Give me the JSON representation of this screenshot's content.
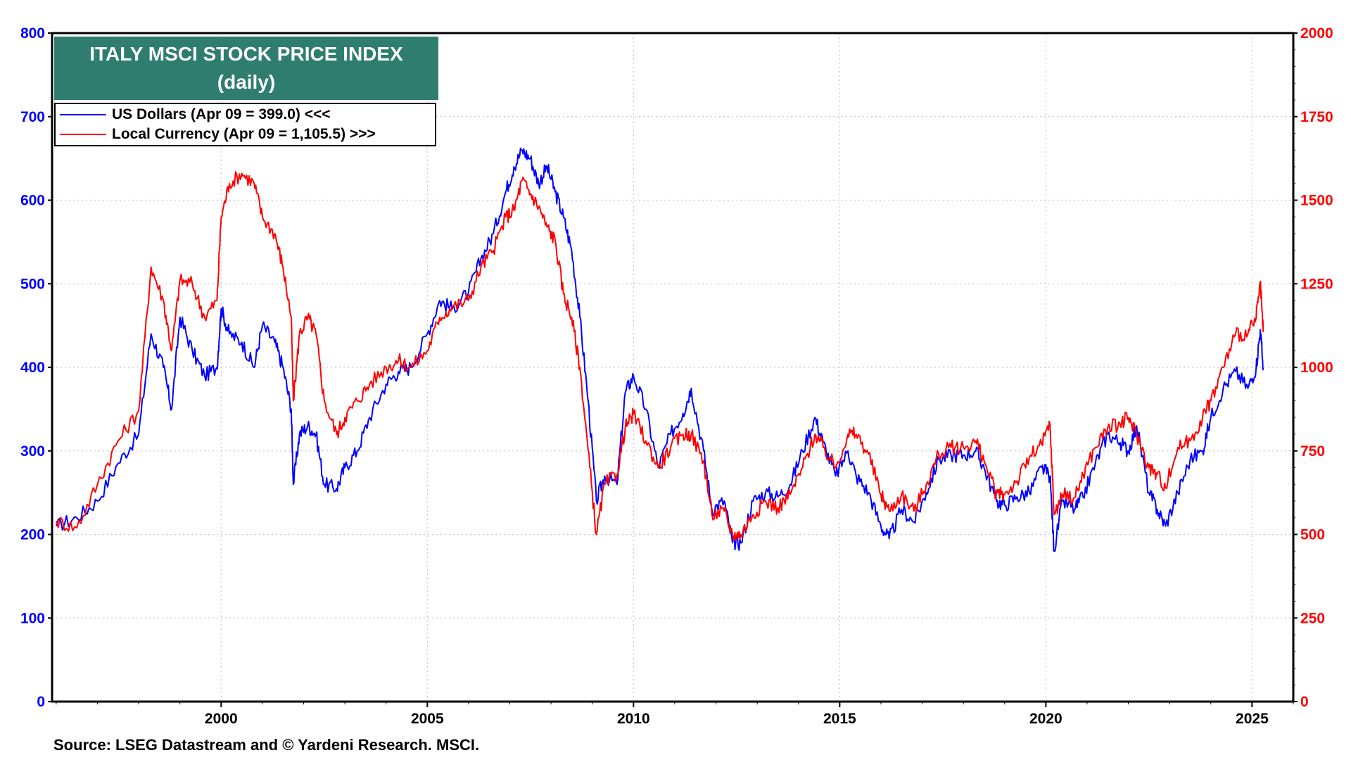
{
  "chart_data": {
    "type": "line",
    "title": "ITALY MSCI STOCK PRICE INDEX",
    "subtitle": "(daily)",
    "source": "Source: LSEG Datastream and © Yardeni Research. MSCI.",
    "x_ticks": [
      "2000",
      "2005",
      "2010",
      "2015",
      "2020",
      "2025"
    ],
    "xlim": [
      1995.9,
      2026.0
    ],
    "y_left": {
      "ylim": [
        0,
        800
      ],
      "ticks": [
        "0",
        "100",
        "200",
        "300",
        "400",
        "500",
        "600",
        "700",
        "800"
      ],
      "color": "#0000ff"
    },
    "y_right": {
      "ylim": [
        0,
        2000
      ],
      "ticks": [
        "0",
        "250",
        "500",
        "750",
        "1000",
        "1250",
        "1500",
        "1750",
        "2000"
      ],
      "color": "#ff0000"
    },
    "legend_placement": "top-left",
    "grid": true,
    "series": [
      {
        "name": "US Dollars (Apr 09 = 399.0) <<<",
        "axis": "left",
        "color": "#0000ff",
        "x": [
          1996.0,
          1996.5,
          1997.0,
          1997.5,
          1998.0,
          1998.3,
          1998.6,
          1998.8,
          1999.0,
          1999.3,
          1999.6,
          1999.9,
          2000.0,
          2000.2,
          2000.5,
          2000.8,
          2001.0,
          2001.3,
          2001.5,
          2001.7,
          2001.75,
          2001.9,
          2002.1,
          2002.3,
          2002.5,
          2002.8,
          2003.0,
          2003.3,
          2003.6,
          2004.0,
          2004.3,
          2004.6,
          2005.0,
          2005.3,
          2005.6,
          2006.0,
          2006.3,
          2006.6,
          2006.9,
          2007.1,
          2007.3,
          2007.5,
          2007.7,
          2007.9,
          2008.1,
          2008.3,
          2008.5,
          2008.7,
          2008.9,
          2009.1,
          2009.3,
          2009.6,
          2009.8,
          2010.0,
          2010.3,
          2010.6,
          2010.9,
          2011.2,
          2011.4,
          2011.7,
          2011.9,
          2012.2,
          2012.4,
          2012.6,
          2012.9,
          2013.2,
          2013.5,
          2013.8,
          2014.1,
          2014.4,
          2014.6,
          2014.9,
          2015.2,
          2015.4,
          2015.7,
          2016.0,
          2016.2,
          2016.5,
          2016.8,
          2017.1,
          2017.4,
          2017.7,
          2018.0,
          2018.3,
          2018.5,
          2018.8,
          2019.0,
          2019.3,
          2019.6,
          2019.9,
          2020.1,
          2020.2,
          2020.4,
          2020.7,
          2020.9,
          2021.2,
          2021.5,
          2021.8,
          2022.0,
          2022.2,
          2022.5,
          2022.7,
          2022.9,
          2023.2,
          2023.5,
          2023.8,
          2024.0,
          2024.3,
          2024.6,
          2024.9,
          2025.1,
          2025.2,
          2025.27
        ],
        "values": [
          210,
          220,
          240,
          285,
          320,
          440,
          400,
          350,
          460,
          420,
          390,
          400,
          470,
          440,
          430,
          400,
          450,
          430,
          400,
          350,
          260,
          320,
          330,
          320,
          260,
          255,
          280,
          300,
          340,
          380,
          395,
          400,
          440,
          480,
          470,
          490,
          530,
          560,
          610,
          640,
          660,
          650,
          620,
          640,
          610,
          580,
          540,
          460,
          360,
          240,
          270,
          260,
          370,
          390,
          350,
          280,
          320,
          345,
          375,
          300,
          230,
          240,
          190,
          190,
          240,
          250,
          245,
          260,
          300,
          340,
          310,
          270,
          300,
          270,
          250,
          210,
          195,
          230,
          215,
          250,
          290,
          295,
          295,
          300,
          280,
          240,
          235,
          245,
          250,
          280,
          270,
          180,
          240,
          230,
          245,
          285,
          320,
          310,
          300,
          330,
          250,
          230,
          210,
          250,
          290,
          300,
          340,
          375,
          395,
          375,
          400,
          445,
          399
        ]
      },
      {
        "name": "Local Currency (Apr 09 = 1,105.5) >>>",
        "axis": "right",
        "color": "#ff0000",
        "x": [
          1996.0,
          1996.5,
          1997.0,
          1997.5,
          1998.0,
          1998.3,
          1998.6,
          1998.8,
          1999.0,
          1999.3,
          1999.6,
          1999.9,
          2000.0,
          2000.2,
          2000.5,
          2000.8,
          2001.0,
          2001.3,
          2001.5,
          2001.7,
          2001.75,
          2001.9,
          2002.1,
          2002.3,
          2002.5,
          2002.8,
          2003.0,
          2003.3,
          2003.6,
          2004.0,
          2004.3,
          2004.6,
          2005.0,
          2005.3,
          2005.6,
          2006.0,
          2006.3,
          2006.6,
          2006.9,
          2007.1,
          2007.3,
          2007.5,
          2007.7,
          2007.9,
          2008.1,
          2008.3,
          2008.5,
          2008.7,
          2008.9,
          2009.1,
          2009.3,
          2009.6,
          2009.8,
          2010.0,
          2010.3,
          2010.6,
          2010.9,
          2011.2,
          2011.4,
          2011.7,
          2011.9,
          2012.2,
          2012.4,
          2012.6,
          2012.9,
          2013.2,
          2013.5,
          2013.8,
          2014.1,
          2014.4,
          2014.6,
          2014.9,
          2015.2,
          2015.4,
          2015.7,
          2016.0,
          2016.2,
          2016.5,
          2016.8,
          2017.1,
          2017.4,
          2017.7,
          2018.0,
          2018.3,
          2018.5,
          2018.8,
          2019.0,
          2019.3,
          2019.6,
          2019.9,
          2020.1,
          2020.2,
          2020.4,
          2020.7,
          2020.9,
          2021.2,
          2021.5,
          2021.8,
          2022.0,
          2022.2,
          2022.5,
          2022.7,
          2022.9,
          2023.2,
          2023.5,
          2023.8,
          2024.0,
          2024.3,
          2024.6,
          2024.9,
          2025.1,
          2025.2,
          2025.27
        ],
        "values": [
          540,
          520,
          650,
          780,
          870,
          1300,
          1200,
          1050,
          1260,
          1250,
          1150,
          1200,
          1450,
          1550,
          1580,
          1550,
          1450,
          1400,
          1300,
          1150,
          900,
          1100,
          1150,
          1100,
          900,
          800,
          850,
          900,
          950,
          1000,
          1020,
          1000,
          1050,
          1150,
          1180,
          1200,
          1300,
          1350,
          1450,
          1470,
          1560,
          1520,
          1480,
          1420,
          1380,
          1220,
          1150,
          1000,
          750,
          500,
          650,
          680,
          820,
          860,
          780,
          700,
          760,
          800,
          800,
          720,
          560,
          570,
          500,
          500,
          560,
          600,
          580,
          620,
          700,
          800,
          760,
          700,
          800,
          800,
          740,
          620,
          570,
          620,
          570,
          650,
          740,
          760,
          760,
          780,
          720,
          620,
          620,
          660,
          730,
          770,
          830,
          560,
          620,
          610,
          680,
          760,
          820,
          830,
          850,
          800,
          700,
          680,
          640,
          760,
          780,
          850,
          900,
          1000,
          1100,
          1100,
          1150,
          1250,
          1105.5
        ]
      }
    ]
  }
}
